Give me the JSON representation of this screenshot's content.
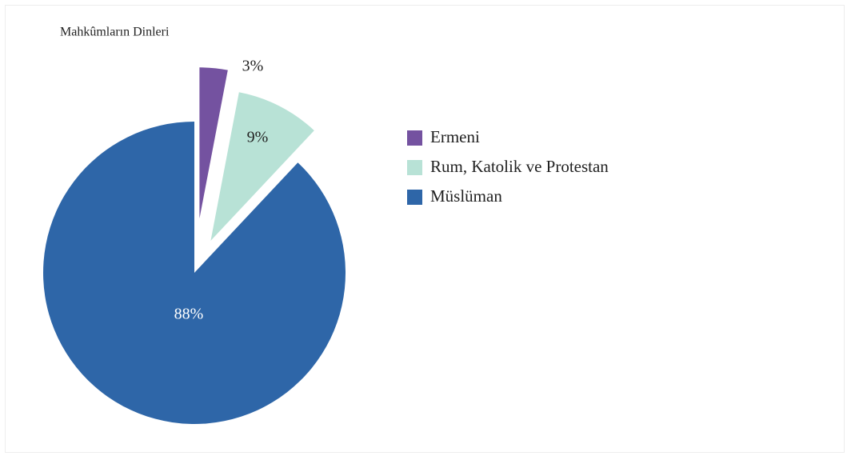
{
  "chart_data": {
    "type": "pie",
    "title": "Mahkûmların Dinleri",
    "categories": [
      "Ermeni",
      "Rum, Katolik ve Protestan",
      "Müslüman"
    ],
    "values": [
      3,
      9,
      88
    ],
    "value_labels": [
      "3%",
      "9%",
      "88%"
    ],
    "colors": [
      "#7452a0",
      "#b8e2d6",
      "#2e66a8"
    ],
    "legend": "right"
  }
}
